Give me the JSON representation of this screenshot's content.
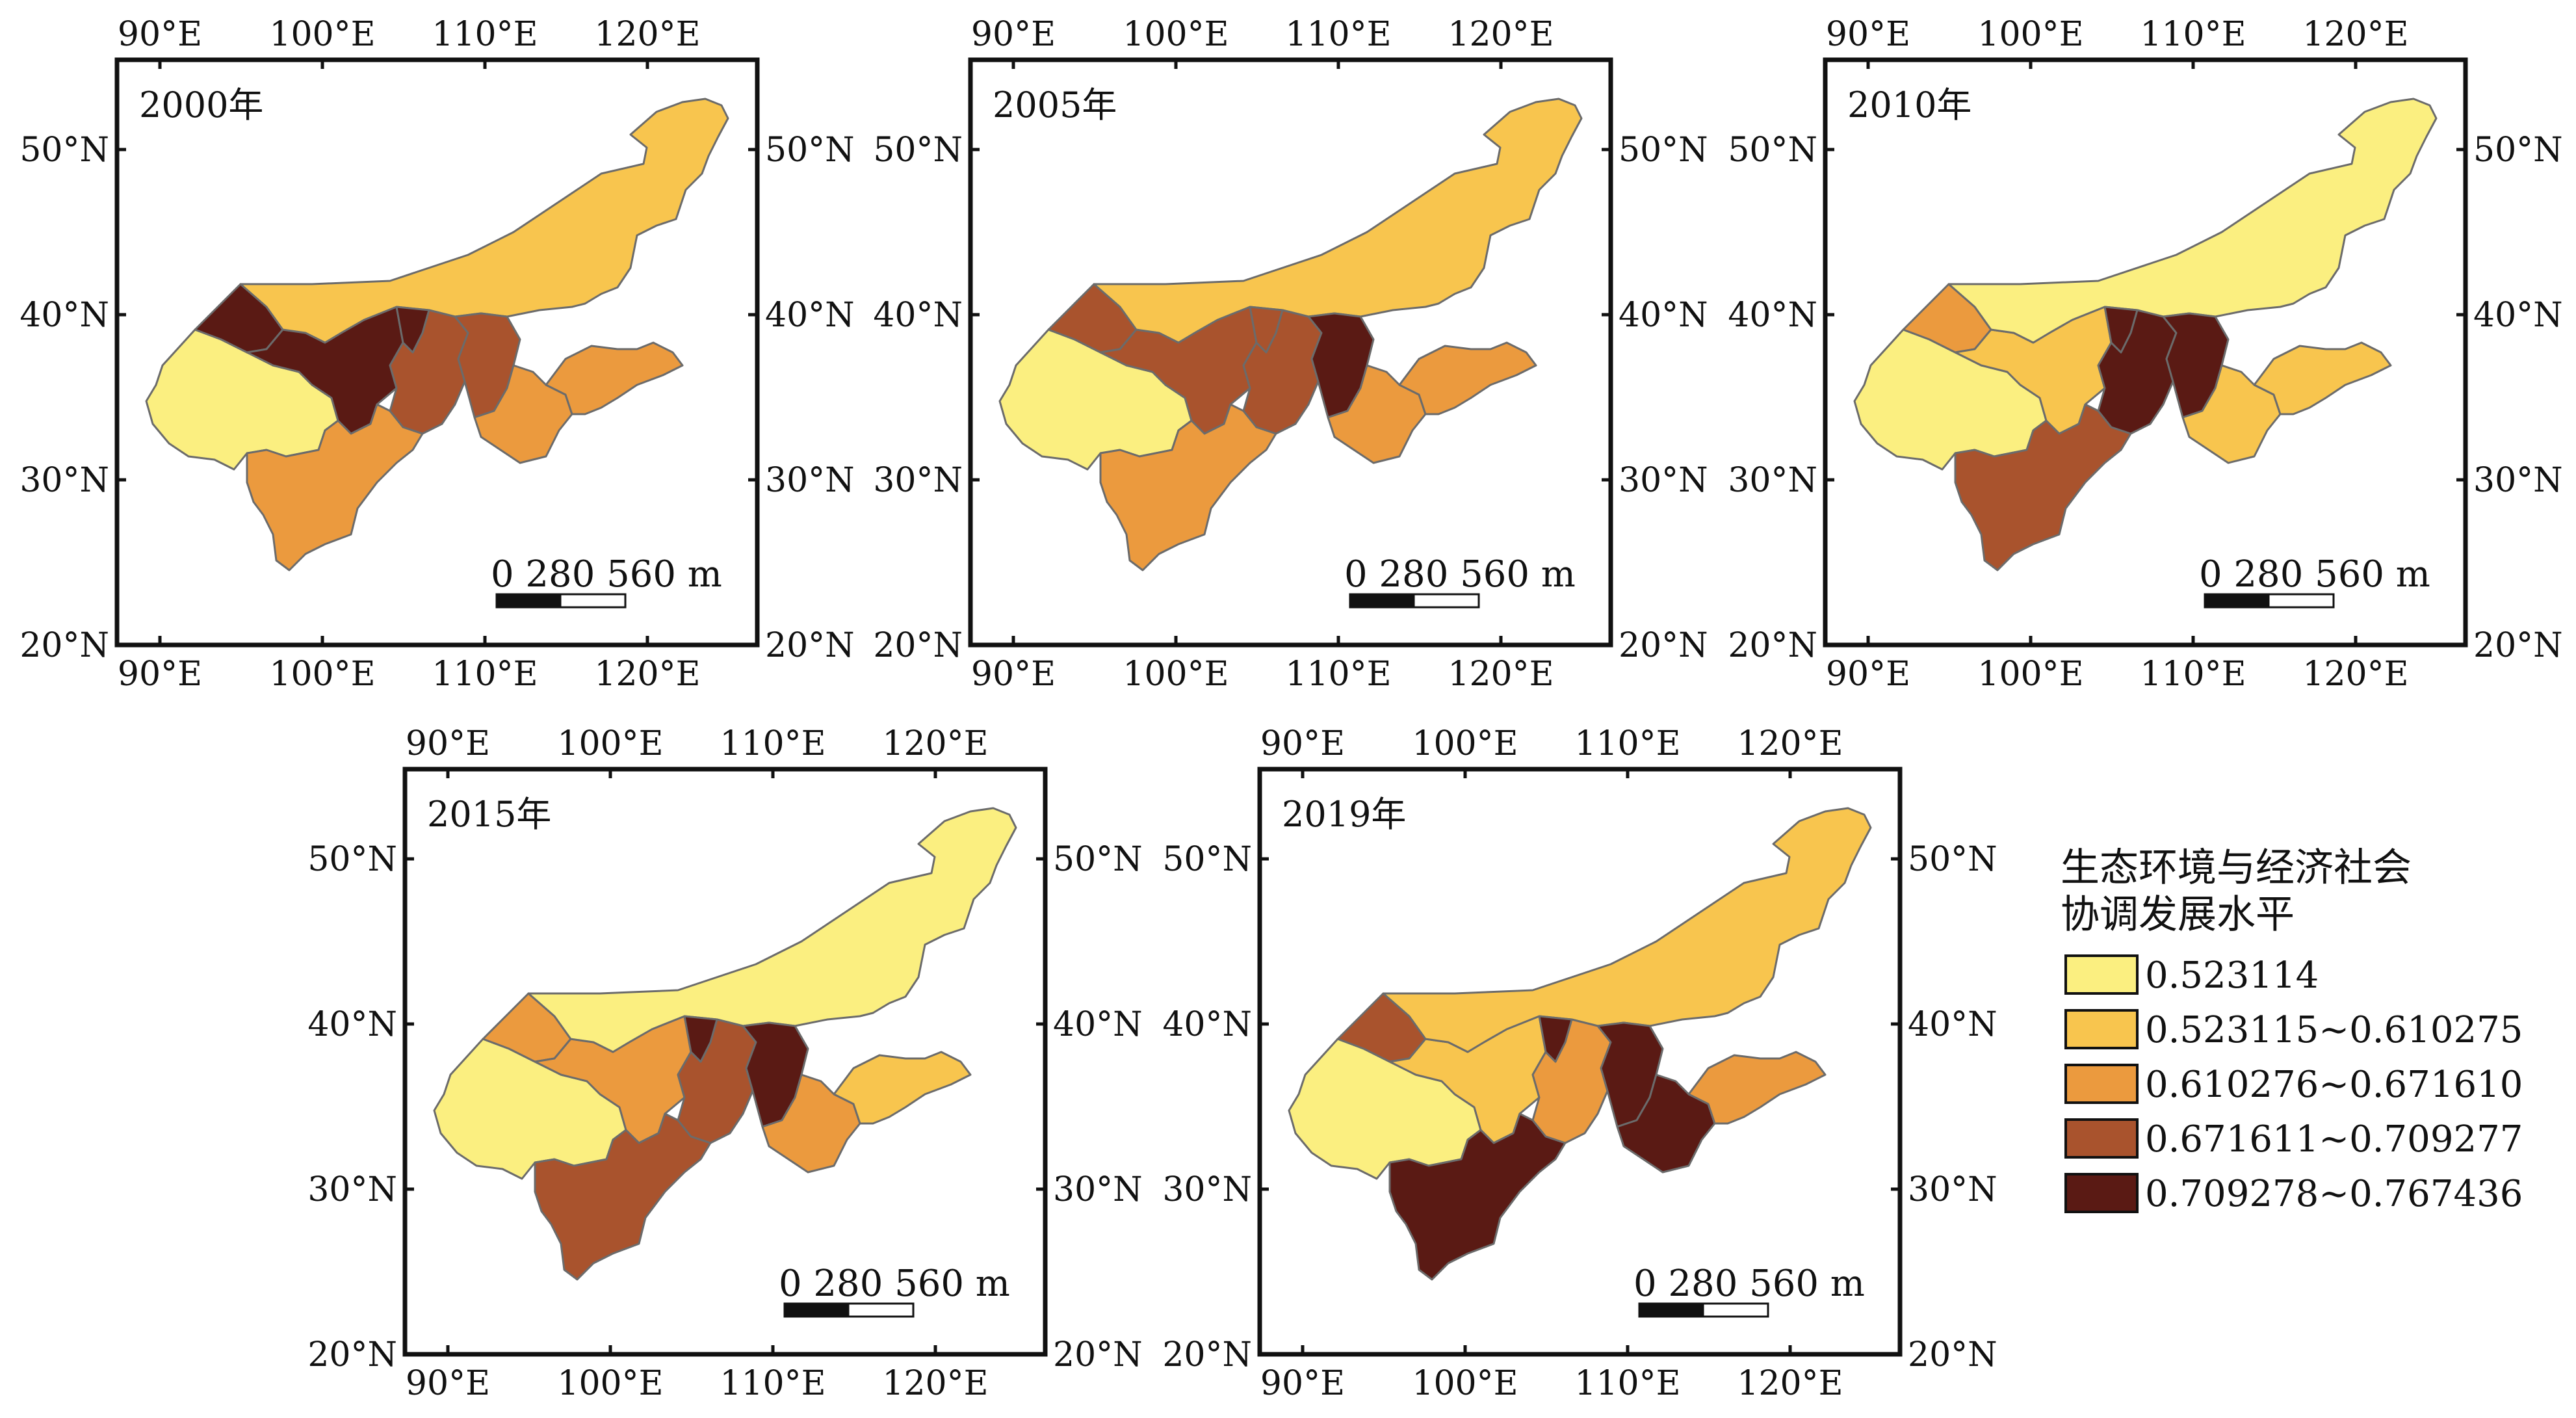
{
  "legend": {
    "title_line1": "生态环境与经济社会",
    "title_line2": "协调发展水平",
    "classes": [
      {
        "label": "0.523114",
        "color": "#FBEF80"
      },
      {
        "label": "0.523115~0.610275",
        "color": "#F8C54E"
      },
      {
        "label": "0.610276~0.671610",
        "color": "#EB9A3E"
      },
      {
        "label": "0.671611~0.709277",
        "color": "#A9532D"
      },
      {
        "label": "0.709278~0.767436",
        "color": "#5A1A14"
      }
    ]
  },
  "axes": {
    "lon_labels": [
      "90°E",
      "100°E",
      "110°E",
      "120°E"
    ],
    "lat_labels": [
      "50°N",
      "40°N",
      "30°N",
      "20°N"
    ]
  },
  "scale_bar": {
    "label": "0  280 560 m"
  },
  "panels": [
    {
      "year": "2000年",
      "classes": {
        "qinghai": 0,
        "gansu": 4,
        "xinjiang_e": 4,
        "innermongolia": 1,
        "sichuan": 2,
        "ningxia": 4,
        "shaanxi": 3,
        "shanxi": 3,
        "henan": 2,
        "shandong": 2
      }
    },
    {
      "year": "2005年",
      "classes": {
        "qinghai": 0,
        "gansu": 3,
        "xinjiang_e": 3,
        "innermongolia": 1,
        "sichuan": 2,
        "ningxia": 3,
        "shaanxi": 3,
        "shanxi": 4,
        "henan": 2,
        "shandong": 2
      }
    },
    {
      "year": "2010年",
      "classes": {
        "qinghai": 0,
        "gansu": 1,
        "xinjiang_e": 2,
        "innermongolia": 0,
        "sichuan": 3,
        "ningxia": 4,
        "shaanxi": 4,
        "shanxi": 4,
        "henan": 1,
        "shandong": 1
      }
    },
    {
      "year": "2015年",
      "classes": {
        "qinghai": 0,
        "gansu": 2,
        "xinjiang_e": 2,
        "innermongolia": 0,
        "sichuan": 3,
        "ningxia": 4,
        "shaanxi": 3,
        "shanxi": 4,
        "henan": 2,
        "shandong": 1
      }
    },
    {
      "year": "2019年",
      "classes": {
        "qinghai": 0,
        "gansu": 1,
        "xinjiang_e": 3,
        "innermongolia": 1,
        "sichuan": 4,
        "ningxia": 4,
        "shaanxi": 2,
        "shanxi": 4,
        "henan": 4,
        "shandong": 2
      }
    }
  ]
}
